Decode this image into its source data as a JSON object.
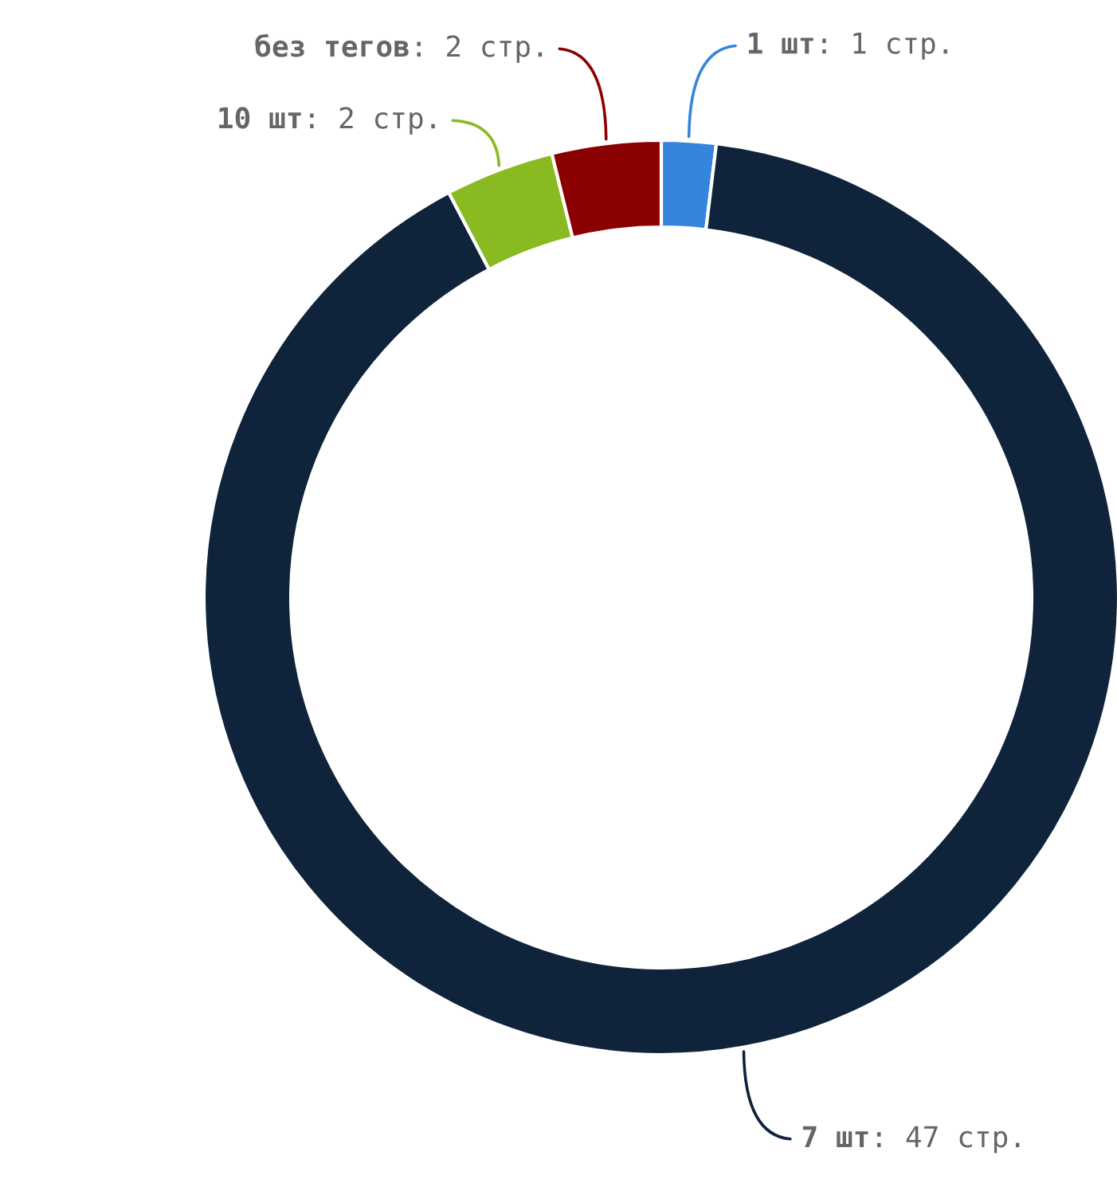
{
  "chart_data": {
    "type": "donut",
    "categories": [
      "1 шт",
      "7 шт",
      "10 шт",
      "без тегов"
    ],
    "values": [
      1,
      47,
      2,
      2
    ],
    "value_labels": [
      ": 1 стр.",
      ": 47 стр.",
      ": 2 стр.",
      ": 2 стр."
    ],
    "colors": [
      "#3584dd",
      "#0f233b",
      "#8aba22",
      "#8b0000"
    ],
    "legend": false
  }
}
